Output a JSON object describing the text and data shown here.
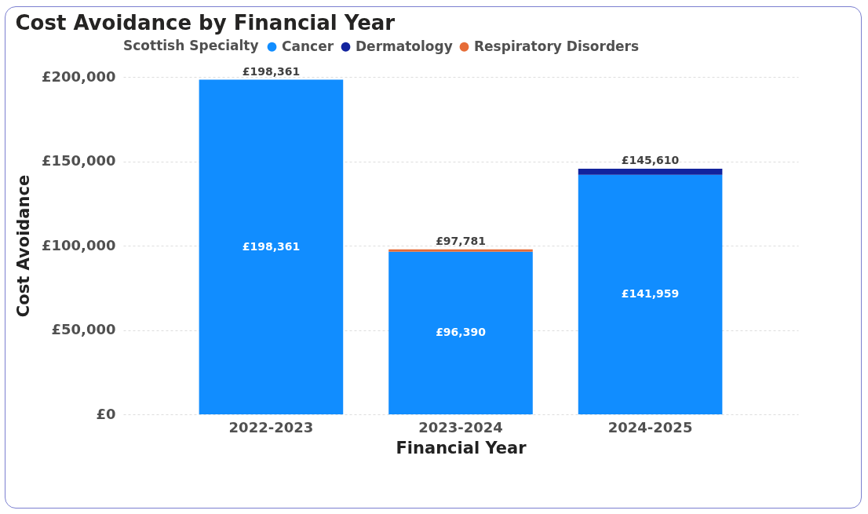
{
  "chart_data": {
    "type": "bar",
    "title": "Cost Avoidance by Financial Year",
    "xlabel": "Financial Year",
    "ylabel": "Cost Avoidance",
    "legend_title": "Scottish Specialty",
    "legend": "top left",
    "stacked": true,
    "grid": "y",
    "categories": [
      "2022-2023",
      "2023-2024",
      "2024-2025"
    ],
    "series": [
      {
        "name": "Cancer",
        "color": "#118dff",
        "values": [
          198361,
          96390,
          141959
        ],
        "value_labels": [
          "£198,361",
          "£96,390",
          "£141,959"
        ]
      },
      {
        "name": "Dermatology",
        "color": "#12239e",
        "values": [
          null,
          null,
          3651
        ]
      },
      {
        "name": "Respiratory Disorders",
        "color": "#e66c37",
        "values": [
          null,
          1391,
          null
        ]
      }
    ],
    "totals": [
      "£198,361",
      "£97,781",
      "£145,610"
    ],
    "ylim": [
      0,
      200000
    ],
    "yticks": [
      {
        "value": 0,
        "label": "£0"
      },
      {
        "value": 50000,
        "label": "£50,000"
      },
      {
        "value": 100000,
        "label": "£100,000"
      },
      {
        "value": 150000,
        "label": "£150,000"
      },
      {
        "value": 200000,
        "label": "£200,000"
      }
    ]
  }
}
